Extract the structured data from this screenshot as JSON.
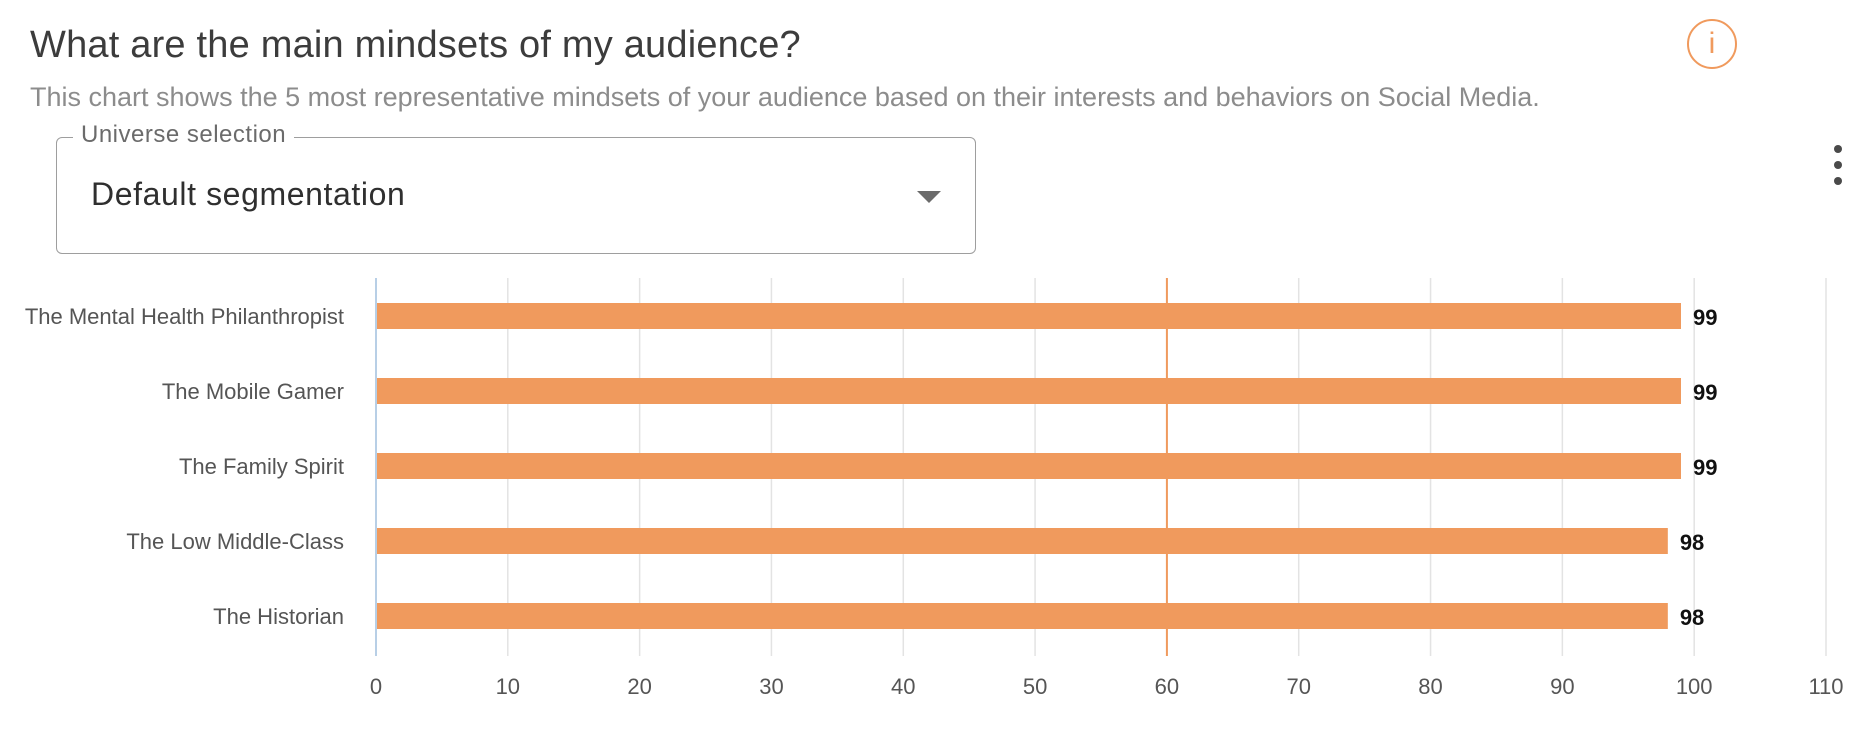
{
  "header": {
    "title": "What are the main mindsets of my audience?",
    "subtitle": "This chart shows the 5 most representative mindsets of your audience based on their interests and behaviors on Social Media.",
    "info_icon": "info-icon",
    "info_text": "i",
    "menu_icon": "more-vertical-icon"
  },
  "universe_selection": {
    "label": "Universe selection",
    "value": "Default segmentation",
    "icon": "caret-down-icon"
  },
  "colors": {
    "bar": "#f09a5d",
    "reference_line": "#f09a5d",
    "grid": "#e3e3e3",
    "axis": "#b8cfe6"
  },
  "chart_data": {
    "type": "bar",
    "orientation": "horizontal",
    "categories": [
      "The Mental Health Philanthropist",
      "The Mobile Gamer",
      "The Family Spirit",
      "The Low Middle-Class",
      "The Historian"
    ],
    "values": [
      99,
      99,
      99,
      98,
      98
    ],
    "xlim": [
      0,
      110
    ],
    "x_ticks": [
      0,
      10,
      20,
      30,
      40,
      50,
      60,
      70,
      80,
      90,
      100,
      110
    ],
    "reference_line": 60,
    "grid": true,
    "title": "",
    "xlabel": "",
    "ylabel": ""
  }
}
